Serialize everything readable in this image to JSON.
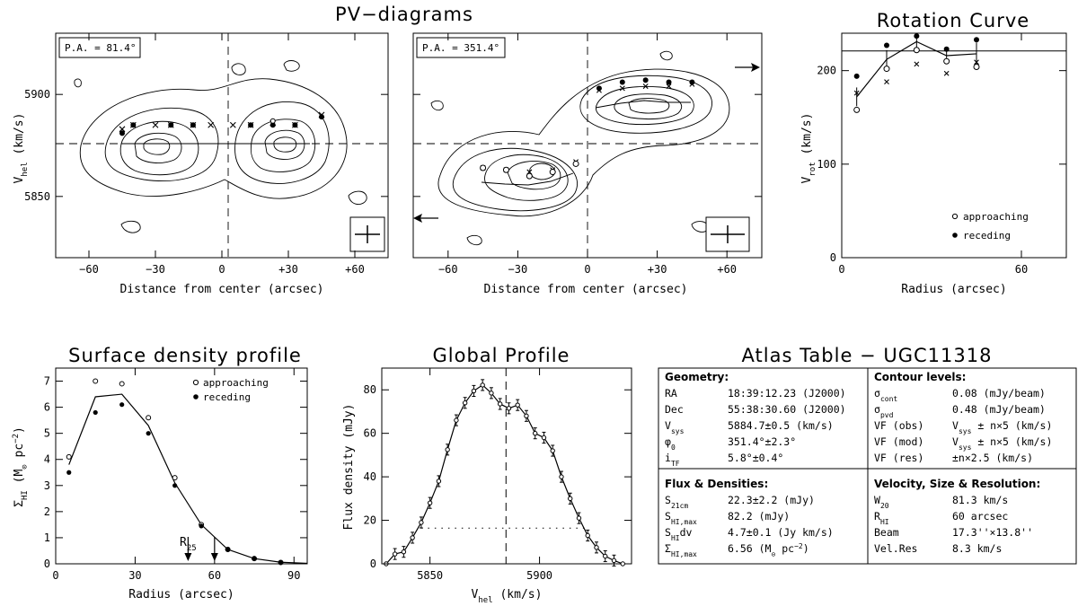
{
  "chart_data": [
    {
      "type": "scatter",
      "title": "PV−diagrams",
      "panel_label": "P.A. = 81.4°",
      "xlabel": "Distance from center (arcsec)",
      "ylabel_main": "V",
      "ylabel_sub": "hel",
      "ylabel_tail": " (km/s)",
      "xlim": [
        -75,
        75
      ],
      "ylim": [
        5820,
        5930
      ],
      "xticks": [
        "−60",
        "−30",
        "0",
        "+30",
        "+60"
      ],
      "xtick_values": [
        -60,
        -30,
        0,
        30,
        60
      ],
      "yticks": [
        "5850",
        "5900"
      ],
      "ytick_values": [
        5850,
        5900
      ],
      "vsys": 5884.7,
      "points_filled": [
        [
          -45,
          5881
        ],
        [
          -40,
          5885
        ],
        [
          -23,
          5885
        ],
        [
          -13,
          5885
        ],
        [
          13,
          5885
        ],
        [
          23,
          5885
        ],
        [
          33,
          5885
        ],
        [
          45,
          5889
        ]
      ],
      "points_cross": [
        [
          -45,
          5883
        ],
        [
          -40,
          5885
        ],
        [
          -30,
          5885
        ],
        [
          -23,
          5885
        ],
        [
          -13,
          5885
        ],
        [
          -5,
          5885
        ],
        [
          5,
          5885
        ],
        [
          13,
          5885
        ],
        [
          23,
          5886
        ],
        [
          33,
          5885
        ],
        [
          45,
          5890
        ]
      ],
      "points_open": [
        [
          23,
          5887
        ]
      ]
    },
    {
      "type": "scatter",
      "panel_label": "P.A. = 351.4°",
      "xlabel": "Distance from center (arcsec)",
      "xlim": [
        -75,
        75
      ],
      "ylim": [
        5820,
        5930
      ],
      "xticks": [
        "−60",
        "−30",
        "0",
        "+30",
        "+60"
      ],
      "xtick_values": [
        -60,
        -30,
        0,
        30,
        60
      ],
      "vsys": 5884.7,
      "points_filled": [
        [
          5,
          5903
        ],
        [
          15,
          5906
        ],
        [
          25,
          5907
        ],
        [
          35,
          5906
        ],
        [
          45,
          5906
        ]
      ],
      "points_cross": [
        [
          5,
          5902
        ],
        [
          15,
          5903
        ],
        [
          25,
          5904
        ],
        [
          35,
          5904
        ],
        [
          45,
          5905
        ],
        [
          -45,
          5864
        ],
        [
          -35,
          5863
        ],
        [
          -25,
          5862
        ],
        [
          -15,
          5863
        ],
        [
          -5,
          5867
        ]
      ],
      "points_open": [
        [
          -45,
          5864
        ],
        [
          -35,
          5863
        ],
        [
          -25,
          5860
        ],
        [
          -15,
          5862
        ],
        [
          -5,
          5866
        ]
      ]
    },
    {
      "type": "line",
      "title": "Rotation Curve",
      "xlabel": "Radius (arcsec)",
      "ylabel_main": "V",
      "ylabel_sub": "rot",
      "ylabel_tail": " (km/s)",
      "xlim": [
        0,
        75
      ],
      "ylim": [
        0,
        240
      ],
      "xticks": [
        "0",
        "60"
      ],
      "xtick_values": [
        0,
        60
      ],
      "yticks": [
        "0",
        "100",
        "200"
      ],
      "ytick_values": [
        0,
        100,
        200
      ],
      "hline": 221,
      "series_line": {
        "x": [
          5,
          15,
          25,
          35,
          45
        ],
        "y": [
          172,
          212,
          231,
          216,
          218
        ]
      },
      "errors": [
        [
          5,
          172,
          10
        ],
        [
          15,
          212,
          10
        ],
        [
          25,
          231,
          8
        ],
        [
          35,
          216,
          8
        ],
        [
          45,
          218,
          12
        ]
      ],
      "approaching": {
        "x": [
          5,
          15,
          25,
          35,
          45
        ],
        "y": [
          158,
          202,
          222,
          210,
          204
        ]
      },
      "receding": {
        "x": [
          5,
          15,
          25,
          35,
          45
        ],
        "y": [
          194,
          227,
          237,
          223,
          233
        ]
      },
      "crosses": {
        "x": [
          5,
          15,
          25,
          35,
          45
        ],
        "y": [
          176,
          188,
          207,
          197,
          209
        ]
      },
      "legend": [
        "approaching",
        "receding"
      ]
    },
    {
      "type": "line",
      "title": "Surface density profile",
      "xlabel": "Radius (arcsec)",
      "ylabel_main": "Σ",
      "ylabel_sub": "HI",
      "ylabel_tail": " (M",
      "ylabel_sun": "⊙",
      "ylabel_unit": " pc",
      "ylabel_exp": "−2",
      "ylabel_close": ")",
      "xlim": [
        0,
        95
      ],
      "ylim": [
        0,
        7.5
      ],
      "xticks": [
        "0",
        "30",
        "60",
        "90"
      ],
      "xtick_values": [
        0,
        30,
        60,
        90
      ],
      "yticks": [
        "0",
        "1",
        "2",
        "3",
        "4",
        "5",
        "6",
        "7"
      ],
      "ytick_values": [
        0,
        1,
        2,
        3,
        4,
        5,
        6,
        7
      ],
      "series_line": {
        "x": [
          5,
          15,
          25,
          35,
          45,
          55,
          65,
          75,
          85,
          95
        ],
        "y": [
          3.8,
          6.4,
          6.5,
          5.3,
          3.1,
          1.5,
          0.55,
          0.2,
          0.06,
          0.02
        ]
      },
      "approaching": {
        "x": [
          5,
          15,
          25,
          35,
          45,
          55,
          65,
          75,
          85
        ],
        "y": [
          4.1,
          7.0,
          6.9,
          5.6,
          3.3,
          1.5,
          0.55,
          0.2,
          0.05
        ]
      },
      "receding": {
        "x": [
          5,
          15,
          25,
          35,
          45,
          55,
          65,
          75,
          85
        ],
        "y": [
          3.5,
          5.8,
          6.1,
          5.0,
          3.0,
          1.45,
          0.55,
          0.2,
          0.05
        ]
      },
      "legend": [
        "approaching",
        "receding"
      ],
      "marker_label": "R",
      "marker_sub": "25",
      "markers_x": [
        50,
        60
      ]
    },
    {
      "type": "line",
      "title": "Global Profile",
      "xlabel_main": "V",
      "xlabel_sub": "hel",
      "xlabel_tail": " (km/s)",
      "ylabel": "Flux density (mJy)",
      "xlim": [
        5828,
        5942
      ],
      "ylim": [
        0,
        90
      ],
      "xticks": [
        "5850",
        "5900"
      ],
      "xtick_values": [
        5850,
        5900
      ],
      "yticks": [
        "0",
        "20",
        "40",
        "60",
        "80"
      ],
      "ytick_values": [
        0,
        20,
        40,
        60,
        80
      ],
      "vsys": 5884.7,
      "half_level": 16.4,
      "x": [
        5830,
        5834,
        5838,
        5842,
        5846,
        5850,
        5854,
        5858,
        5862,
        5866,
        5870,
        5874,
        5878,
        5882,
        5886,
        5890,
        5894,
        5898,
        5902,
        5906,
        5910,
        5914,
        5918,
        5922,
        5926,
        5930,
        5934,
        5938
      ],
      "y": [
        0,
        4.5,
        5.5,
        12,
        19,
        28,
        38,
        52.5,
        66,
        74,
        79.5,
        82.2,
        78.5,
        73.5,
        71.5,
        73,
        68,
        60,
        58,
        52,
        40,
        30,
        21,
        13,
        7.5,
        3.5,
        1.5,
        0
      ],
      "errors": 2.5
    }
  ],
  "atlas_table": {
    "title": "Atlas Table − UGC11318",
    "geometry": {
      "heading": "Geometry:",
      "rows": [
        {
          "label": "RA",
          "value": "18:39:12.23 (J2000)"
        },
        {
          "label": "Dec",
          "value": "55:38:30.60 (J2000)"
        },
        {
          "label_main": "V",
          "label_sub": "sys",
          "value": "5884.7±0.5 (km/s)"
        },
        {
          "label_main": "φ",
          "label_sub": "0",
          "value": "351.4°±2.3°"
        },
        {
          "label_main": "i",
          "label_sub": "TF",
          "value": "5.8°±0.4°"
        }
      ]
    },
    "contours": {
      "heading": "Contour levels:",
      "rows": [
        {
          "label_main": "σ",
          "label_sub": "cont",
          "value": "0.08 (mJy/beam)"
        },
        {
          "label_main": "σ",
          "label_sub": "pvd",
          "value": "0.48 (mJy/beam)"
        },
        {
          "label": "VF (obs)",
          "value_main": "V",
          "value_sub": "sys",
          "value_tail": " ± n×5 (km/s)"
        },
        {
          "label": "VF (mod)",
          "value_main": "V",
          "value_sub": "sys",
          "value_tail": " ± n×5 (km/s)"
        },
        {
          "label": "VF (res)",
          "value": "±n×2.5 (km/s)"
        }
      ]
    },
    "flux": {
      "heading": "Flux & Densities:",
      "rows": [
        {
          "label_main": "S",
          "label_sub": "21cm",
          "value": "22.3±2.2 (mJy)"
        },
        {
          "label_main": "S",
          "label_sub": "HI,max",
          "value": "82.2 (mJy)"
        },
        {
          "label_main": "S",
          "label_sub": "HI",
          "label_tail": "dv",
          "value": "4.7±0.1 (Jy km/s)"
        },
        {
          "label_main": "Σ",
          "label_sub": "HI,max",
          "value_pre": "6.56 (M",
          "value_sun": "⊙",
          "value_mid": " pc",
          "value_exp": "−2",
          "value_post": ")"
        }
      ]
    },
    "velocity": {
      "heading": "Velocity, Size & Resolution:",
      "rows": [
        {
          "label_main": "W",
          "label_sub": "20",
          "value": "81.3 km/s"
        },
        {
          "label_main": "R",
          "label_sub": "HI",
          "value": "60 arcsec"
        },
        {
          "label": "Beam",
          "value": "17.3''×13.8''"
        },
        {
          "label": "Vel.Res",
          "value": "8.3 km/s"
        }
      ]
    }
  }
}
